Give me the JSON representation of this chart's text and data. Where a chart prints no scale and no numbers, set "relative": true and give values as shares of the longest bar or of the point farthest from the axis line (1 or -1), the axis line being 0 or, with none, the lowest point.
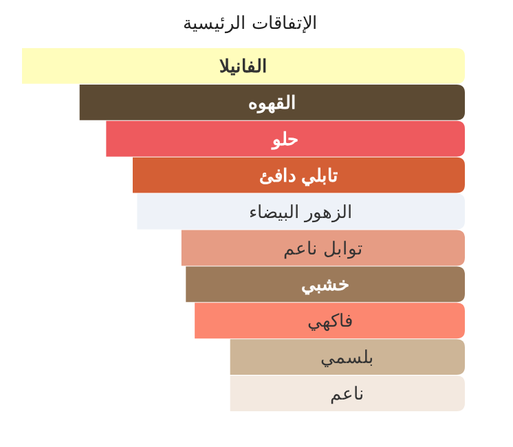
{
  "chart_data": {
    "type": "bar",
    "orientation": "horizontal",
    "relative": true,
    "title": "الإتفاقات الرئيسية",
    "categories": [
      "الفانيلا",
      "القهوه",
      "حلو",
      "تابلي دافئ",
      "الزهور البيضاء",
      "توابل ناعم",
      "خشبي",
      "فاكهي",
      "بلسمي",
      "ناعم"
    ],
    "values": [
      1,
      0.87,
      0.81,
      0.75,
      0.74,
      0.64,
      0.63,
      0.61,
      0.53,
      0.53
    ],
    "colors": [
      "#fffdbc",
      "#5c4a33",
      "#ee5a5e",
      "#d45f35",
      "#eef2f8",
      "#e69c84",
      "#9c7a5a",
      "#fc8770",
      "#cdb597",
      "#f3e9e0"
    ]
  }
}
